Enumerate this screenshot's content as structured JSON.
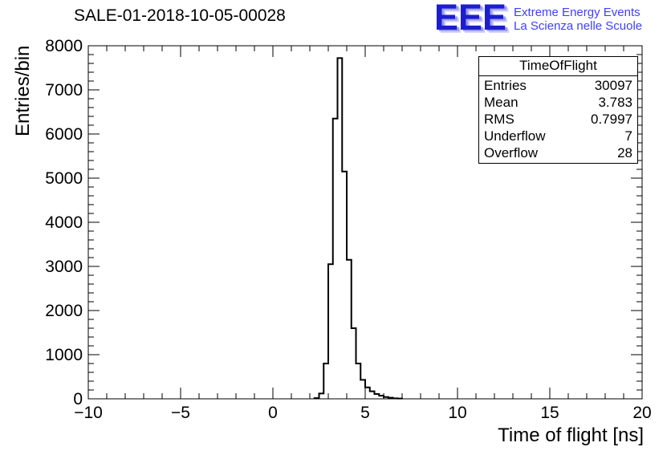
{
  "title": "SALE-01-2018-10-05-00028",
  "logo": {
    "text": "EEE",
    "line1": "Extreme Energy Events",
    "line2": "La Scienza nelle Scuole",
    "color": "#3f3fff"
  },
  "stats": {
    "title": "TimeOfFlight",
    "rows": [
      {
        "label": "Entries",
        "value": "30097"
      },
      {
        "label": "Mean",
        "value": "3.783"
      },
      {
        "label": "RMS",
        "value": "0.7997"
      },
      {
        "label": "Underflow",
        "value": "7"
      },
      {
        "label": "Overflow",
        "value": "28"
      }
    ]
  },
  "chart_data": {
    "type": "bar",
    "subtype": "step-histogram",
    "title": "SALE-01-2018-10-05-00028",
    "xlabel": "Time of flight [ns]",
    "ylabel": "Entries/bin",
    "xlim": [
      -10,
      20
    ],
    "ylim": [
      0,
      8000
    ],
    "xticks": [
      -10,
      -5,
      0,
      5,
      10,
      15,
      20
    ],
    "xtick_labels": [
      "−10",
      "−5",
      "0",
      "5",
      "10",
      "15",
      "20"
    ],
    "x_minor_step": 1,
    "yticks": [
      0,
      1000,
      2000,
      3000,
      4000,
      5000,
      6000,
      7000,
      8000
    ],
    "ytick_labels": [
      "0",
      "1000",
      "2000",
      "3000",
      "4000",
      "5000",
      "6000",
      "7000",
      "8000"
    ],
    "y_minor_step": 200,
    "grid": false,
    "line_color": "#000000",
    "bin_width": 0.25,
    "bin_left_edges": [
      2.25,
      2.5,
      2.75,
      3.0,
      3.25,
      3.5,
      3.75,
      4.0,
      4.25,
      4.5,
      4.75,
      5.0,
      5.25,
      5.5,
      5.75,
      6.0,
      6.25,
      6.5,
      6.75
    ],
    "counts": [
      15,
      120,
      800,
      3050,
      6350,
      7720,
      5150,
      3150,
      1600,
      800,
      430,
      260,
      170,
      110,
      70,
      40,
      25,
      12,
      6
    ],
    "entries": 30097,
    "mean": 3.783,
    "rms": 0.7997,
    "underflow": 7,
    "overflow": 28
  }
}
